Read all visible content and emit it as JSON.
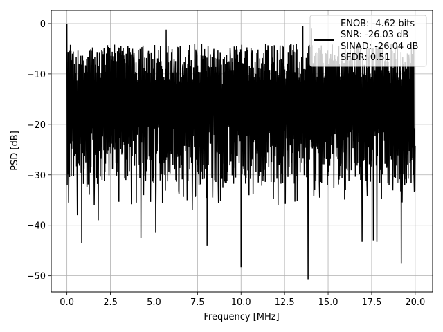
{
  "chart_data": {
    "type": "line",
    "title": "",
    "xlabel": "Frequency [MHz]",
    "ylabel": "PSD [dB]",
    "xlim": [
      -0.9,
      21.0
    ],
    "ylim": [
      -53.2,
      2.6
    ],
    "xticks": [
      0.0,
      2.5,
      5.0,
      7.5,
      10.0,
      12.5,
      15.0,
      17.5,
      20.0
    ],
    "xtick_labels": [
      "0.0",
      "2.5",
      "5.0",
      "7.5",
      "10.0",
      "12.5",
      "15.0",
      "17.5",
      "20.0"
    ],
    "yticks": [
      0,
      -10,
      -20,
      -30,
      -40,
      -50
    ],
    "ytick_labels": [
      "0",
      "−10",
      "−20",
      "−30",
      "−40",
      "−50"
    ],
    "grid": true,
    "legend_position": "top-right",
    "legend_lines": [
      "ENOB: -4.62 bits",
      "SNR: -26.03 dB",
      "SINAD: -26.04 dB",
      "SFDR: 0.51"
    ],
    "line_color": "#000000",
    "series": [
      {
        "x_start": 0.0,
        "x_end": 20.0,
        "points": 1200,
        "noise_floor_db": -16,
        "visible_peaks": [
          {
            "x": 0.0,
            "y": 0.0
          },
          {
            "x": 5.7,
            "y": -1.2
          },
          {
            "x": 13.55,
            "y": -0.5
          },
          {
            "x": 14.05,
            "y": -1.0
          }
        ],
        "visible_dips": [
          {
            "x": 0.1,
            "y": -35.5
          },
          {
            "x": 0.6,
            "y": -38.0
          },
          {
            "x": 0.85,
            "y": -43.5
          },
          {
            "x": 1.8,
            "y": -39.0
          },
          {
            "x": 4.25,
            "y": -42.5
          },
          {
            "x": 5.1,
            "y": -41.5
          },
          {
            "x": 7.2,
            "y": -37.0
          },
          {
            "x": 8.05,
            "y": -44.0
          },
          {
            "x": 10.0,
            "y": -48.3
          },
          {
            "x": 13.85,
            "y": -50.8
          },
          {
            "x": 16.95,
            "y": -43.3
          },
          {
            "x": 17.6,
            "y": -43.0
          },
          {
            "x": 17.8,
            "y": -43.3
          },
          {
            "x": 19.2,
            "y": -47.5
          }
        ]
      }
    ]
  }
}
